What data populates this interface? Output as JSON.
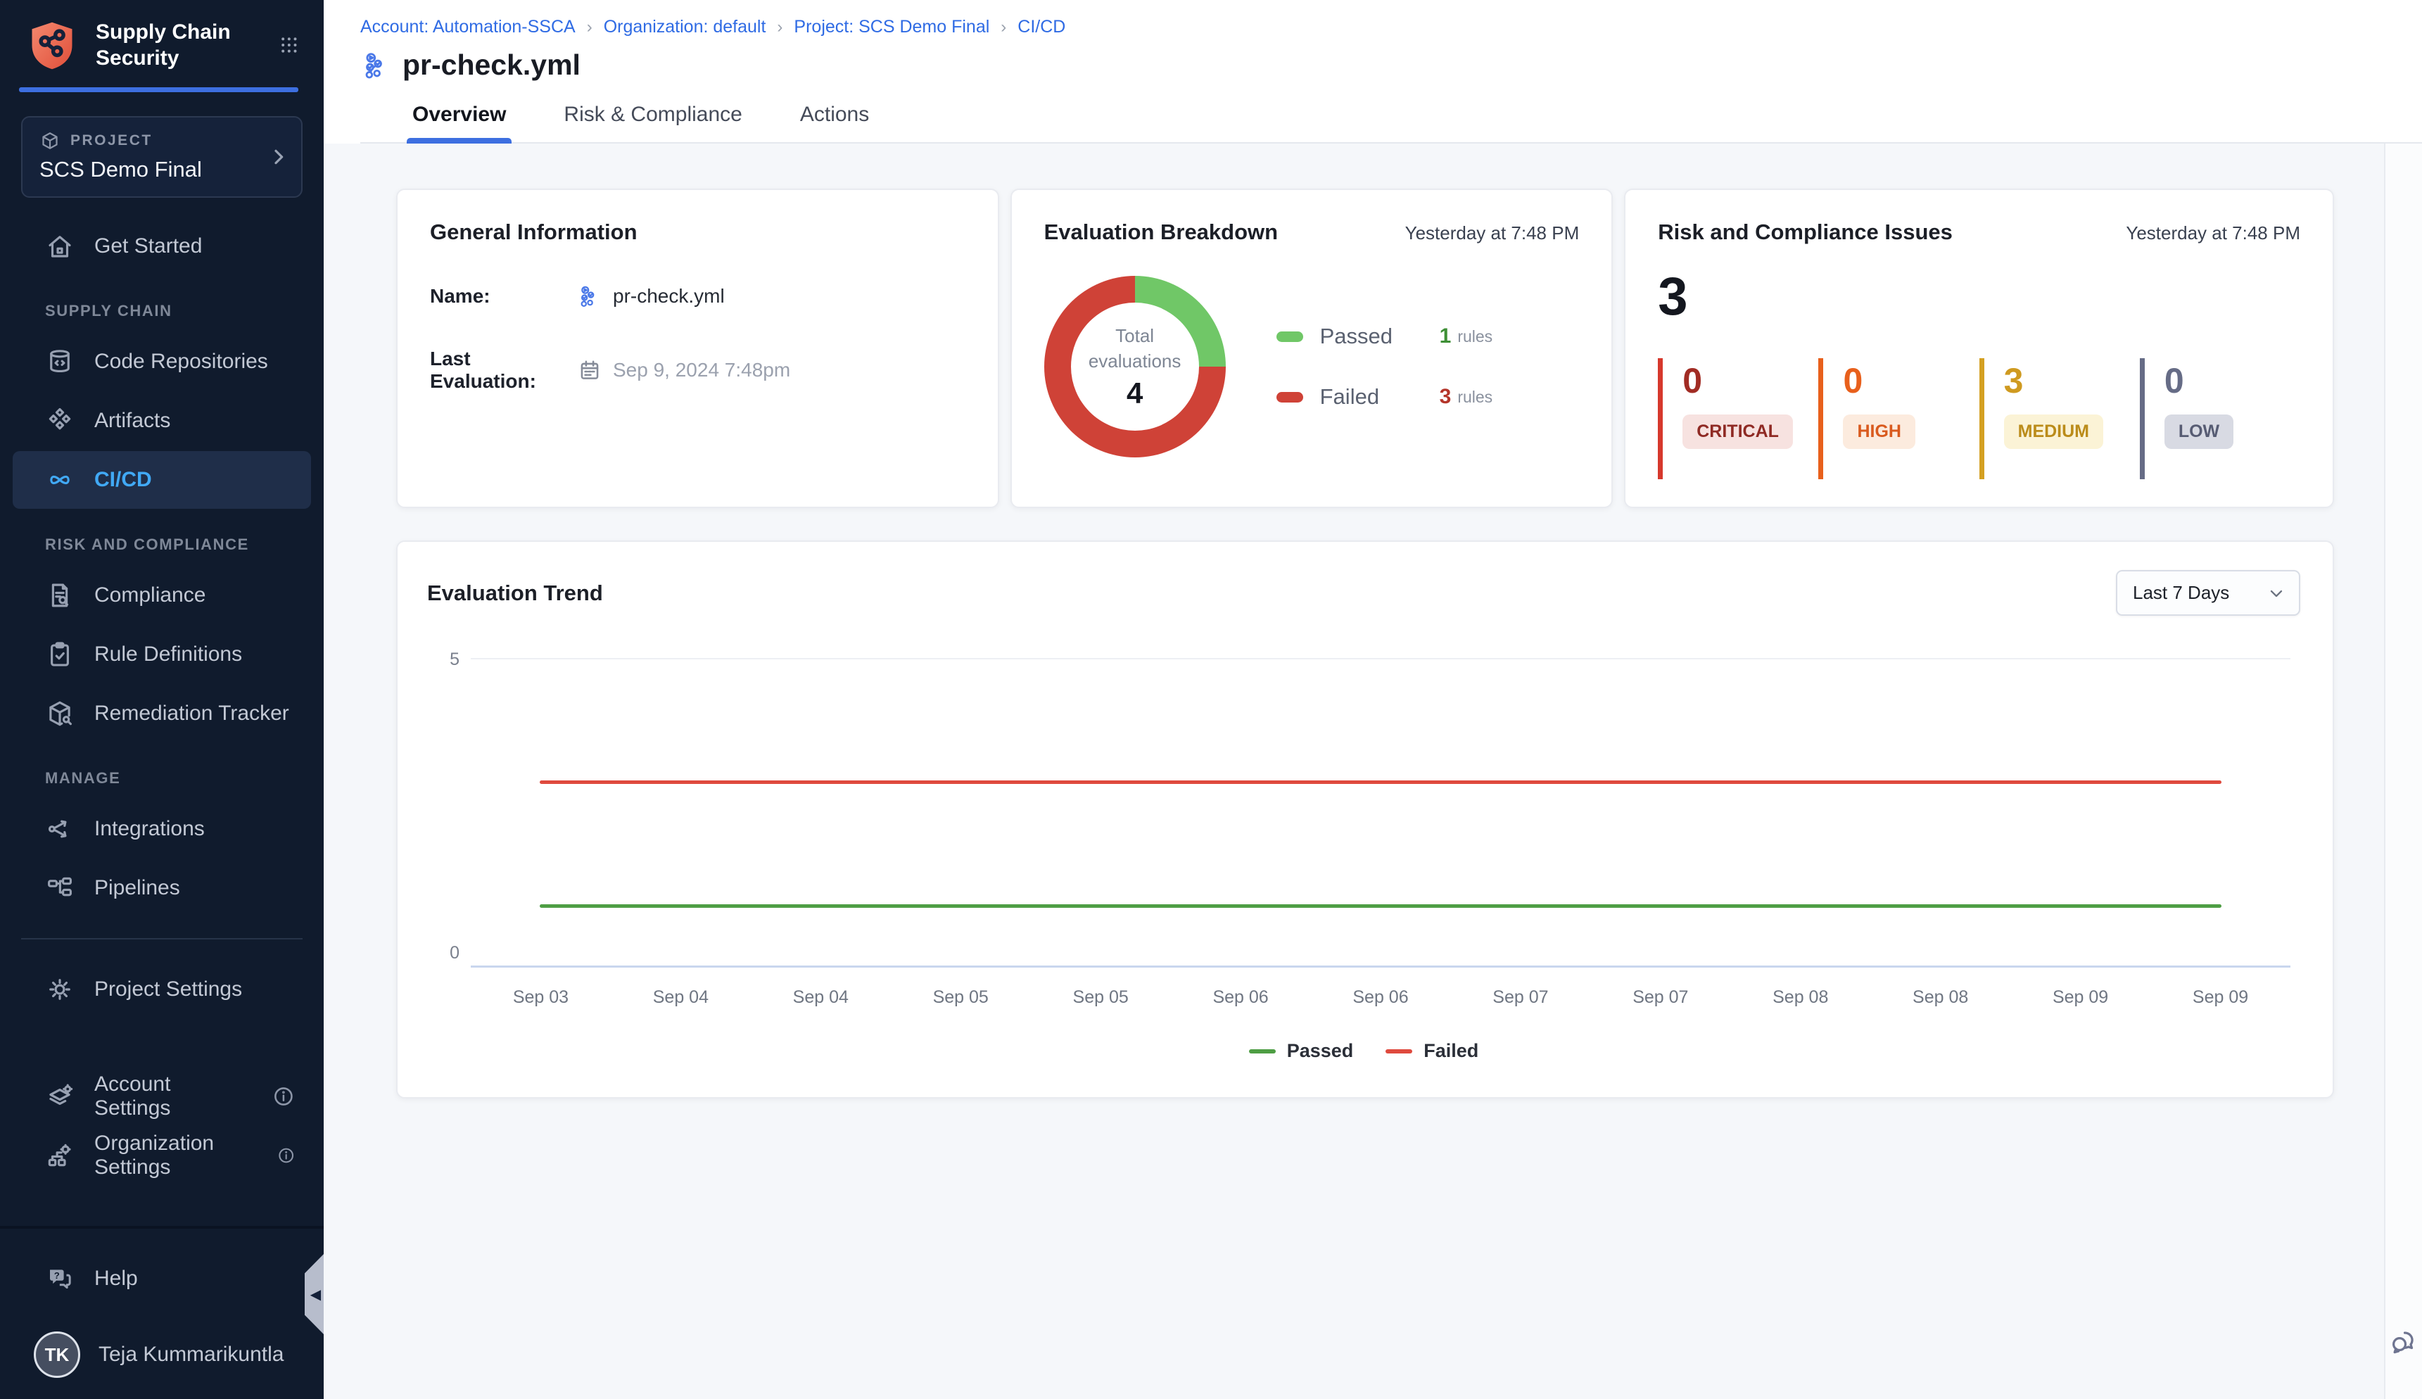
{
  "colors": {
    "accent_blue": "#3d6fe0",
    "link_blue": "#2f6be4",
    "active_nav_blue": "#41a9f5",
    "sidebar_bg": "#101b2d",
    "content_bg": "#f5f7fa",
    "passed_green": "#70c767",
    "failed_red": "#cf4237",
    "trend_passed_green": "#4e9e44",
    "trend_failed_red": "#df4a3e"
  },
  "sidebar": {
    "brand": {
      "title": "Supply Chain Security",
      "logo_icon": "shield-logo-icon",
      "apps_icon": "app-grid-icon"
    },
    "project_card": {
      "label": "PROJECT",
      "name": "SCS Demo Final",
      "icon": "cube-icon"
    },
    "nav": [
      {
        "items": [
          {
            "id": "get-started",
            "label": "Get Started",
            "icon": "home-icon"
          }
        ]
      },
      {
        "header": "SUPPLY CHAIN",
        "items": [
          {
            "id": "code-repositories",
            "label": "Code Repositories",
            "icon": "repository-icon"
          },
          {
            "id": "artifacts",
            "label": "Artifacts",
            "icon": "artifacts-icon"
          },
          {
            "id": "ci-cd",
            "label": "CI/CD",
            "icon": "infinity-icon",
            "active": true
          }
        ]
      },
      {
        "header": "RISK AND COMPLIANCE",
        "items": [
          {
            "id": "compliance",
            "label": "Compliance",
            "icon": "document-search-icon"
          },
          {
            "id": "rule-definitions",
            "label": "Rule Definitions",
            "icon": "clipboard-check-icon"
          },
          {
            "id": "remediation-tracker",
            "label": "Remediation Tracker",
            "icon": "box-wrench-icon"
          }
        ]
      },
      {
        "header": "MANAGE",
        "items": [
          {
            "id": "integrations",
            "label": "Integrations",
            "icon": "share-nodes-icon"
          },
          {
            "id": "pipelines",
            "label": "Pipelines",
            "icon": "pipelines-icon"
          }
        ]
      },
      {
        "divider": true,
        "items": [
          {
            "id": "project-settings",
            "label": "Project Settings",
            "icon": "gear-icon"
          }
        ]
      },
      {
        "gap": true,
        "items": [
          {
            "id": "account-settings",
            "label": "Account Settings",
            "icon": "layers-gear-icon",
            "info": true
          },
          {
            "id": "organization-settings",
            "label": "Organization Settings",
            "icon": "org-gear-icon",
            "info": true
          }
        ]
      }
    ],
    "footer": {
      "help_label": "Help",
      "help_icon": "help-chat-icon",
      "user_initials": "TK",
      "user_name": "Teja Kummarikuntla"
    }
  },
  "header": {
    "breadcrumb": [
      "Account: Automation-SSCA",
      "Organization: default",
      "Project: SCS Demo Final",
      "CI/CD"
    ],
    "page_title": "pr-check.yml",
    "page_title_icon": "pipeline-icon",
    "tabs": [
      {
        "label": "Overview",
        "active": true
      },
      {
        "label": "Risk & Compliance",
        "active": false
      },
      {
        "label": "Actions",
        "active": false
      }
    ]
  },
  "cards": {
    "general_info": {
      "title": "General Information",
      "name_label": "Name:",
      "name_value": "pr-check.yml",
      "last_eval_label": "Last Evaluation:",
      "last_eval_value": "Sep 9, 2024 7:48pm"
    },
    "evaluation_breakdown": {
      "title": "Evaluation Breakdown",
      "timestamp": "Yesterday at 7:48 PM",
      "center_label_line1": "Total",
      "center_label_line2": "evaluations",
      "center_value": "4"
    },
    "risk_issues": {
      "title": "Risk and Compliance Issues",
      "timestamp": "Yesterday at 7:48 PM",
      "total": "3",
      "severities": [
        {
          "label": "CRITICAL",
          "value": "0",
          "bar": "#d6382c",
          "num": "#a12c24",
          "badge_bg": "#f7e2e0",
          "badge_text": "#8f2a24"
        },
        {
          "label": "HIGH",
          "value": "0",
          "bar": "#e8601c",
          "num": "#e8601c",
          "badge_bg": "#fcebde",
          "badge_text": "#d95a1e"
        },
        {
          "label": "MEDIUM",
          "value": "3",
          "bar": "#d4a022",
          "num": "#cf9a20",
          "badge_bg": "#fbf3d6",
          "badge_text": "#bb8c1a"
        },
        {
          "label": "LOW",
          "value": "0",
          "bar": "#666c86",
          "num": "#666c86",
          "badge_bg": "#d8dae3",
          "badge_text": "#575c73"
        }
      ]
    }
  },
  "trend": {
    "title": "Evaluation Trend",
    "range_value": "Last 7 Days"
  },
  "chart_data": [
    {
      "type": "pie",
      "title": "Evaluation Breakdown",
      "labels": [
        "Passed",
        "Failed"
      ],
      "values": [
        1,
        3
      ],
      "unit": "rules",
      "colors": [
        "#70c767",
        "#cf4237"
      ],
      "center_label": "Total evaluations",
      "center_total": 4
    },
    {
      "type": "line",
      "title": "Evaluation Trend",
      "x": [
        "Sep 03",
        "Sep 04",
        "Sep 04",
        "Sep 05",
        "Sep 05",
        "Sep 06",
        "Sep 06",
        "Sep 07",
        "Sep 07",
        "Sep 08",
        "Sep 08",
        "Sep 09",
        "Sep 09"
      ],
      "series": [
        {
          "name": "Passed",
          "color": "#4e9e44",
          "values": [
            1,
            1,
            1,
            1,
            1,
            1,
            1,
            1,
            1,
            1,
            1,
            1,
            1
          ]
        },
        {
          "name": "Failed",
          "color": "#df4a3e",
          "values": [
            3,
            3,
            3,
            3,
            3,
            3,
            3,
            3,
            3,
            3,
            3,
            3,
            3
          ]
        }
      ],
      "ylim": [
        0,
        5
      ],
      "yticks": [
        5,
        0
      ],
      "grid": "top-gridline-only",
      "legend_position": "bottom"
    }
  ]
}
